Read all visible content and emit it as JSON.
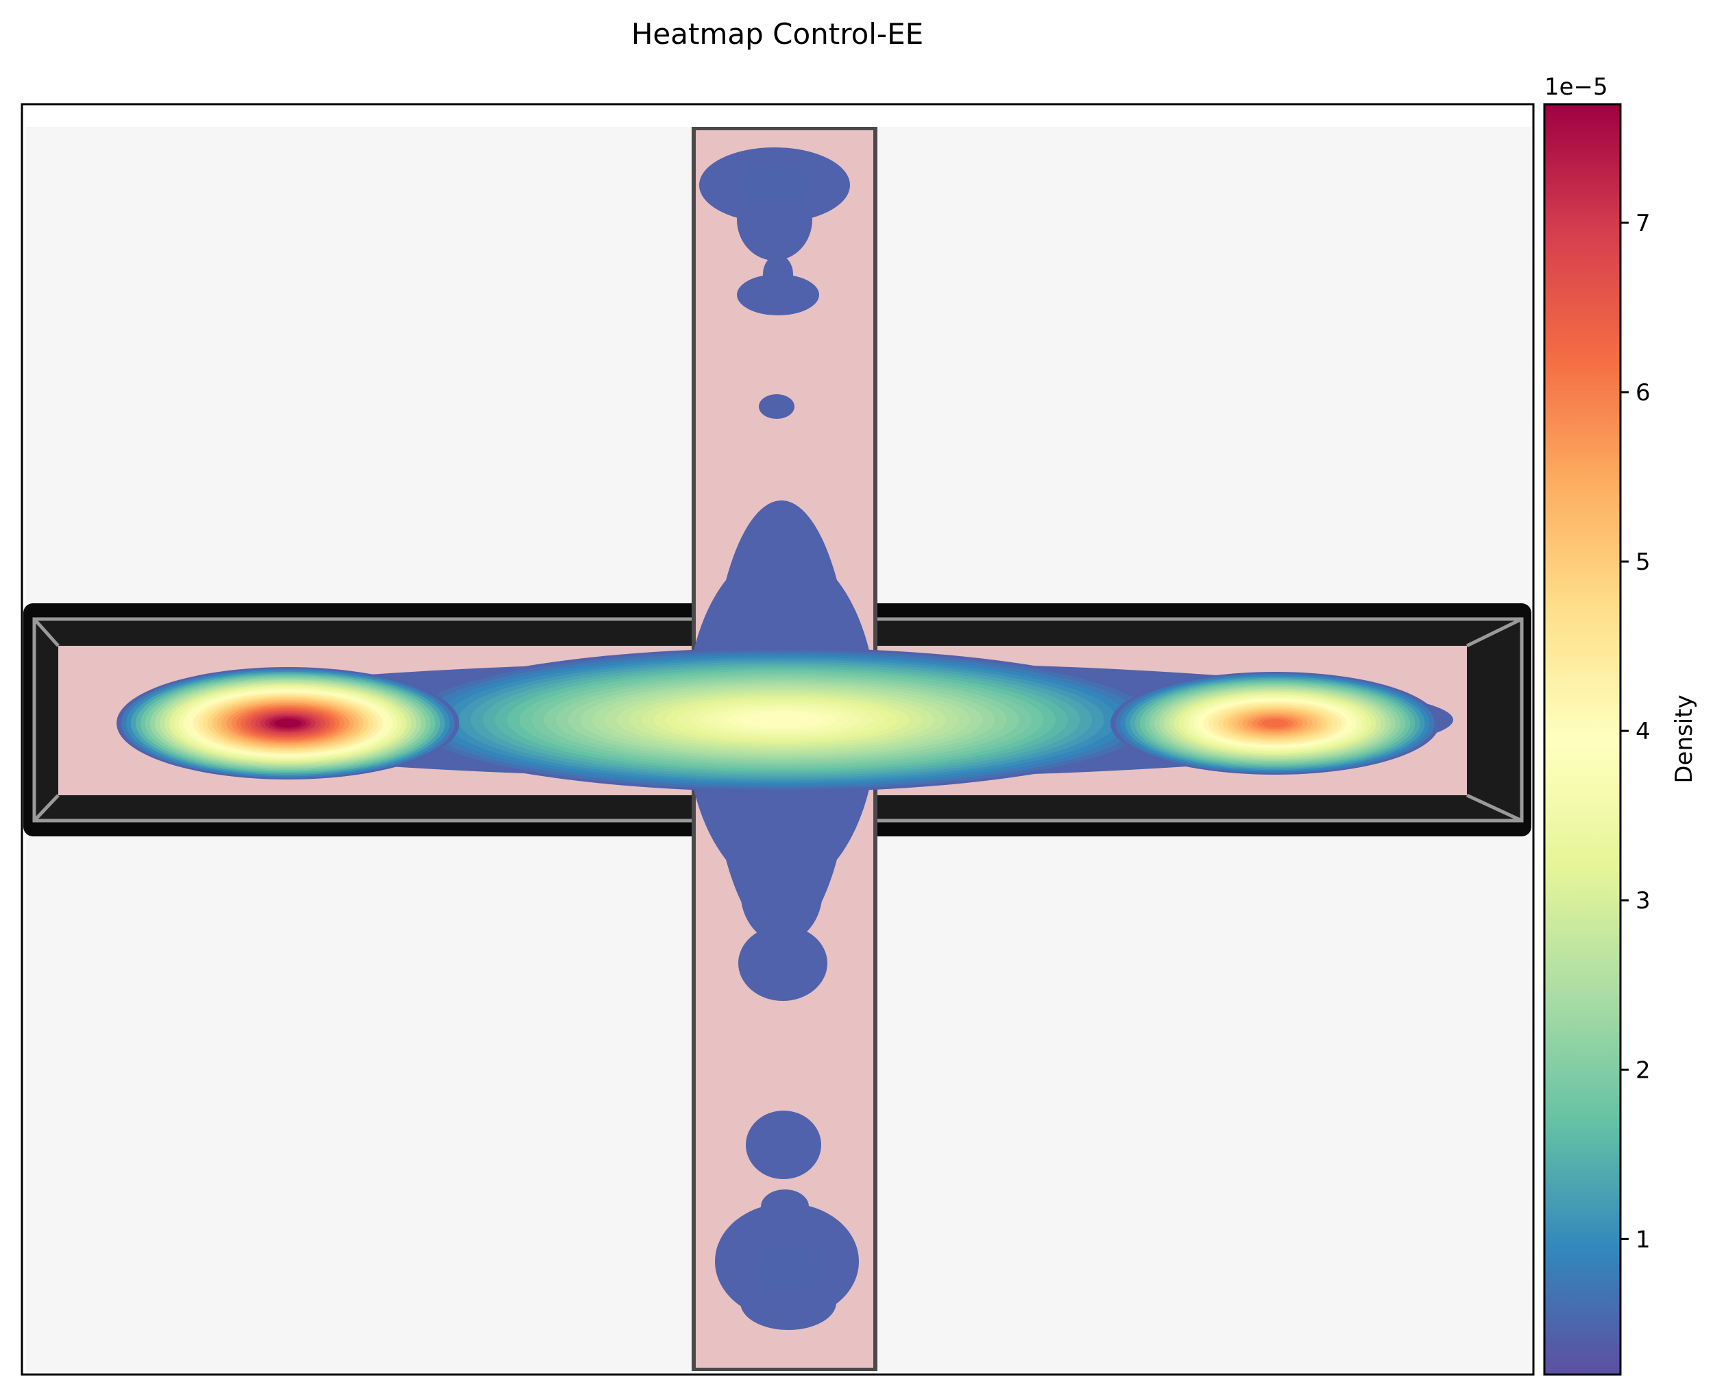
{
  "chart_data": {
    "type": "heatmap",
    "title": "Heatmap Control-EE",
    "colorbar": {
      "label": "Density",
      "offset_text": "1e−5",
      "range": [
        0.2,
        7.7
      ],
      "ticks": [
        1,
        2,
        3,
        4,
        5,
        6,
        7
      ],
      "tick_labels": [
        "1",
        "2",
        "3",
        "4",
        "5",
        "6",
        "7"
      ],
      "colormap": [
        "#5e4fa2",
        "#3288bd",
        "#66c2a5",
        "#abdda4",
        "#e6f598",
        "#ffffbf",
        "#fee08b",
        "#fdae61",
        "#f46d43",
        "#d53e4f",
        "#9e0142"
      ]
    },
    "background_color": "#f6f6f6",
    "arena_color": "#e8c1c3",
    "hotspots": [
      {
        "name": "left-arm",
        "peak": 7.7
      },
      {
        "name": "right-arm",
        "peak": 6.2
      },
      {
        "name": "center",
        "peak": 4.0
      },
      {
        "name": "top-arm",
        "peak": 0.5
      },
      {
        "name": "bottom-arm",
        "peak": 0.5
      }
    ],
    "axes": {
      "xticks": "off",
      "yticks": "off",
      "grid": "off"
    }
  }
}
